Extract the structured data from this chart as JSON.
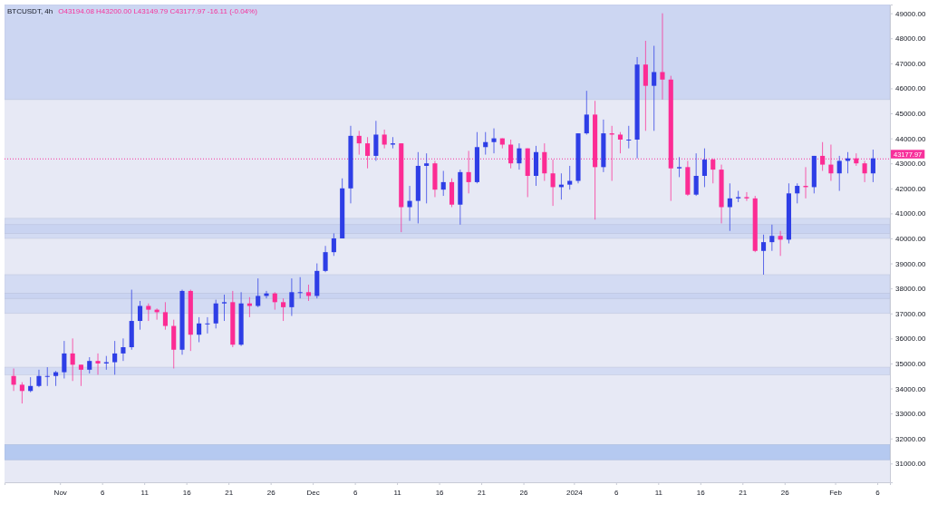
{
  "chart_data": {
    "type": "candlestick",
    "title": "BTCUSDT, 4h",
    "subtitle": "O43194.08 H43200.00 L43149.79 C43177.97 -16.11 (-0.04%)",
    "x": [
      "2023-10-26T12:00",
      "2023-10-27T12:00",
      "2023-10-28T12:00",
      "2023-10-29T12:00",
      "2023-10-30T12:00",
      "2023-10-31T12:00",
      "2023-11-01T12:00",
      "2023-11-02T12:00",
      "2023-11-03T12:00",
      "2023-11-04T12:00",
      "2023-11-05T12:00",
      "2023-11-06T12:00",
      "2023-11-07T12:00",
      "2023-11-08T12:00",
      "2023-11-09T12:00",
      "2023-11-10T12:00",
      "2023-11-11T12:00",
      "2023-11-12T12:00",
      "2023-11-13T12:00",
      "2023-11-14T12:00",
      "2023-11-15T12:00",
      "2023-11-16T12:00",
      "2023-11-17T12:00",
      "2023-11-18T12:00",
      "2023-11-19T12:00",
      "2023-11-20T12:00",
      "2023-11-21T12:00",
      "2023-11-22T12:00",
      "2023-11-23T12:00",
      "2023-11-24T12:00",
      "2023-11-25T12:00",
      "2023-11-26T12:00",
      "2023-11-27T12:00",
      "2023-11-28T12:00",
      "2023-11-29T12:00",
      "2023-11-30T12:00",
      "2023-12-01T12:00",
      "2023-12-02T12:00",
      "2023-12-03T12:00",
      "2023-12-04T12:00",
      "2023-12-05T12:00",
      "2023-12-06T12:00",
      "2023-12-07T12:00",
      "2023-12-08T12:00",
      "2023-12-09T12:00",
      "2023-12-10T12:00",
      "2023-12-11T12:00",
      "2023-12-12T12:00",
      "2023-12-13T12:00",
      "2023-12-14T12:00",
      "2023-12-15T12:00",
      "2023-12-16T12:00",
      "2023-12-17T12:00",
      "2023-12-18T12:00",
      "2023-12-19T12:00",
      "2023-12-20T12:00",
      "2023-12-21T12:00",
      "2023-12-22T12:00",
      "2023-12-23T12:00",
      "2023-12-24T12:00",
      "2023-12-25T12:00",
      "2023-12-26T12:00",
      "2023-12-27T12:00",
      "2023-12-28T12:00",
      "2023-12-29T12:00",
      "2023-12-30T12:00",
      "2023-12-31T12:00",
      "2024-01-01T12:00",
      "2024-01-02T12:00",
      "2024-01-03T12:00",
      "2024-01-04T12:00",
      "2024-01-05T12:00",
      "2024-01-06T12:00",
      "2024-01-07T12:00",
      "2024-01-08T12:00",
      "2024-01-09T12:00",
      "2024-01-10T12:00",
      "2024-01-11T12:00",
      "2024-01-12T12:00",
      "2024-01-13T12:00",
      "2024-01-14T12:00",
      "2024-01-15T12:00",
      "2024-01-16T12:00",
      "2024-01-17T12:00",
      "2024-01-18T12:00",
      "2024-01-19T12:00",
      "2024-01-20T12:00",
      "2024-01-21T12:00",
      "2024-01-22T12:00",
      "2024-01-23T12:00",
      "2024-01-24T12:00",
      "2024-01-25T12:00",
      "2024-01-26T12:00",
      "2024-01-27T12:00",
      "2024-01-28T12:00",
      "2024-01-29T12:00",
      "2024-01-30T12:00",
      "2024-01-31T12:00",
      "2024-02-01T12:00",
      "2024-02-02T12:00",
      "2024-02-03T12:00",
      "2024-02-04T12:00",
      "2024-02-05T12:00"
    ],
    "ohlc": [
      [
        34500,
        34800,
        33900,
        34150
      ],
      [
        34150,
        34250,
        33400,
        33900
      ],
      [
        33900,
        34450,
        33850,
        34100
      ],
      [
        34100,
        34750,
        34050,
        34500
      ],
      [
        34500,
        34850,
        34100,
        34500
      ],
      [
        34500,
        34700,
        34100,
        34650
      ],
      [
        34650,
        35900,
        34400,
        35400
      ],
      [
        35400,
        36000,
        34300,
        34950
      ],
      [
        34950,
        34950,
        34100,
        34750
      ],
      [
        34750,
        35250,
        34600,
        35100
      ],
      [
        35100,
        35400,
        34550,
        35000
      ],
      [
        35000,
        35300,
        34750,
        35050
      ],
      [
        35050,
        35900,
        34550,
        35400
      ],
      [
        35400,
        36000,
        35100,
        35650
      ],
      [
        35650,
        37950,
        35550,
        36700
      ],
      [
        36700,
        37500,
        36350,
        37300
      ],
      [
        37300,
        37400,
        36700,
        37150
      ],
      [
        37150,
        37200,
        36750,
        37050
      ],
      [
        37050,
        37450,
        36350,
        36500
      ],
      [
        36500,
        36750,
        34800,
        35550
      ],
      [
        35550,
        37950,
        35350,
        37900
      ],
      [
        37900,
        37950,
        35500,
        36150
      ],
      [
        36150,
        36850,
        35850,
        36600
      ],
      [
        36600,
        36850,
        36200,
        36600
      ],
      [
        36600,
        37550,
        36400,
        37400
      ],
      [
        37400,
        37750,
        36700,
        37450
      ],
      [
        37450,
        37900,
        35650,
        35750
      ],
      [
        35750,
        37850,
        35700,
        37400
      ],
      [
        37400,
        37650,
        36850,
        37300
      ],
      [
        37300,
        38400,
        37250,
        37700
      ],
      [
        37700,
        37900,
        37600,
        37800
      ],
      [
        37800,
        37850,
        37150,
        37450
      ],
      [
        37450,
        37600,
        36700,
        37250
      ],
      [
        37250,
        38400,
        36900,
        37850
      ],
      [
        37850,
        38450,
        37600,
        37850
      ],
      [
        37850,
        38150,
        37500,
        37700
      ],
      [
        37700,
        39000,
        37600,
        38700
      ],
      [
        38700,
        39700,
        38650,
        39450
      ],
      [
        39450,
        40200,
        39300,
        40000
      ],
      [
        40000,
        42400,
        40000,
        42000
      ],
      [
        42000,
        44500,
        41400,
        44100
      ],
      [
        44100,
        44300,
        43350,
        43800
      ],
      [
        43800,
        44050,
        42800,
        43300
      ],
      [
        43300,
        44700,
        43100,
        44150
      ],
      [
        44150,
        44350,
        43600,
        43750
      ],
      [
        43750,
        44050,
        43600,
        43800
      ],
      [
        43800,
        43800,
        40250,
        41250
      ],
      [
        41250,
        42100,
        40700,
        41500
      ],
      [
        41500,
        43450,
        40600,
        42900
      ],
      [
        42900,
        43400,
        41400,
        43000
      ],
      [
        43000,
        43100,
        41650,
        41950
      ],
      [
        41950,
        42700,
        41700,
        42250
      ],
      [
        42250,
        42400,
        41250,
        41350
      ],
      [
        41350,
        42750,
        40550,
        42650
      ],
      [
        42650,
        43500,
        41800,
        42250
      ],
      [
        42250,
        44250,
        42200,
        43650
      ],
      [
        43650,
        44250,
        43350,
        43850
      ],
      [
        43850,
        44400,
        43400,
        44000
      ],
      [
        44000,
        44000,
        43600,
        43750
      ],
      [
        43750,
        43950,
        42800,
        43000
      ],
      [
        43000,
        43800,
        42750,
        43600
      ],
      [
        43600,
        43600,
        41650,
        42500
      ],
      [
        42500,
        43700,
        42100,
        43450
      ],
      [
        43450,
        43800,
        42300,
        42600
      ],
      [
        42600,
        43150,
        41300,
        42050
      ],
      [
        42050,
        42600,
        41550,
        42150
      ],
      [
        42150,
        42900,
        41950,
        42300
      ],
      [
        42300,
        44200,
        42200,
        44200
      ],
      [
        44200,
        45900,
        44150,
        44950
      ],
      [
        44950,
        45500,
        40750,
        42850
      ],
      [
        42850,
        44750,
        42650,
        44200
      ],
      [
        44200,
        44500,
        42300,
        44150
      ],
      [
        44150,
        44250,
        43400,
        43950
      ],
      [
        43950,
        44500,
        43600,
        43950
      ],
      [
        43950,
        47250,
        43200,
        46950
      ],
      [
        46950,
        47900,
        44300,
        46100
      ],
      [
        46100,
        47700,
        44300,
        46650
      ],
      [
        46650,
        49000,
        45550,
        46350
      ],
      [
        46350,
        46500,
        41500,
        42800
      ],
      [
        42800,
        43250,
        42450,
        42850
      ],
      [
        42850,
        43100,
        41700,
        41750
      ],
      [
        41750,
        43400,
        41700,
        42500
      ],
      [
        42500,
        43600,
        42050,
        43150
      ],
      [
        43150,
        43200,
        42200,
        42750
      ],
      [
        42750,
        42950,
        40600,
        41250
      ],
      [
        41250,
        42200,
        40300,
        41600
      ],
      [
        41600,
        41900,
        41450,
        41650
      ],
      [
        41650,
        41850,
        41500,
        41600
      ],
      [
        41600,
        41700,
        39450,
        39500
      ],
      [
        39500,
        40150,
        38550,
        39850
      ],
      [
        39850,
        40550,
        39500,
        40100
      ],
      [
        40100,
        40300,
        39300,
        39950
      ],
      [
        39950,
        42200,
        39800,
        41800
      ],
      [
        41800,
        42200,
        41400,
        42100
      ],
      [
        42100,
        42850,
        41600,
        42050
      ],
      [
        42050,
        43300,
        41800,
        43300
      ],
      [
        43300,
        43850,
        42700,
        42950
      ],
      [
        42950,
        43750,
        42300,
        42600
      ],
      [
        42600,
        43300,
        41900,
        43100
      ],
      [
        43100,
        43450,
        42600,
        43200
      ],
      [
        43200,
        43400,
        42900,
        43000
      ],
      [
        43000,
        43100,
        42250,
        42600
      ],
      [
        42600,
        43550,
        42250,
        43200
      ]
    ],
    "colors": [
      "#fc2c94",
      "#fc2c94",
      "#2e3ee6",
      "#2e3ee6",
      "#2e3ee6",
      "#2e3ee6",
      "#2e3ee6",
      "#fc2c94",
      "#fc2c94",
      "#2e3ee6",
      "#fc2c94",
      "#2e3ee6",
      "#2e3ee6",
      "#2e3ee6",
      "#2e3ee6",
      "#2e3ee6",
      "#fc2c94",
      "#fc2c94",
      "#fc2c94",
      "#fc2c94",
      "#2e3ee6",
      "#fc2c94",
      "#2e3ee6",
      "#2e3ee6",
      "#2e3ee6",
      "#2e3ee6",
      "#fc2c94",
      "#2e3ee6",
      "#fc2c94",
      "#2e3ee6",
      "#2e3ee6",
      "#fc2c94",
      "#fc2c94",
      "#2e3ee6",
      "#2e3ee6",
      "#fc2c94",
      "#2e3ee6",
      "#2e3ee6",
      "#2e3ee6",
      "#2e3ee6",
      "#2e3ee6",
      "#fc2c94",
      "#fc2c94",
      "#2e3ee6",
      "#fc2c94",
      "#2e3ee6",
      "#fc2c94",
      "#2e3ee6",
      "#2e3ee6",
      "#2e3ee6",
      "#fc2c94",
      "#2e3ee6",
      "#fc2c94",
      "#2e3ee6",
      "#fc2c94",
      "#2e3ee6",
      "#2e3ee6",
      "#2e3ee6",
      "#fc2c94",
      "#fc2c94",
      "#2e3ee6",
      "#fc2c94",
      "#2e3ee6",
      "#fc2c94",
      "#fc2c94",
      "#2e3ee6",
      "#2e3ee6",
      "#2e3ee6",
      "#2e3ee6",
      "#fc2c94",
      "#2e3ee6",
      "#fc2c94",
      "#fc2c94",
      "#2e3ee6",
      "#2e3ee6",
      "#fc2c94",
      "#2e3ee6",
      "#fc2c94",
      "#fc2c94",
      "#2e3ee6",
      "#fc2c94",
      "#2e3ee6",
      "#2e3ee6",
      "#fc2c94",
      "#fc2c94",
      "#2e3ee6",
      "#2e3ee6",
      "#fc2c94",
      "#fc2c94",
      "#2e3ee6",
      "#2e3ee6",
      "#fc2c94",
      "#2e3ee6",
      "#2e3ee6",
      "#fc2c94",
      "#2e3ee6",
      "#fc2c94",
      "#fc2c94",
      "#2e3ee6",
      "#2e3ee6",
      "#fc2c94",
      "#fc2c94",
      "#2e3ee6"
    ],
    "xlim": [
      "2023-10-25T10:00",
      "2024-02-07T12:00"
    ],
    "xticks": [
      {
        "value": "2023-11-01",
        "label": "Nov"
      },
      {
        "value": "2023-11-06",
        "label": "6"
      },
      {
        "value": "2023-11-11",
        "label": "11"
      },
      {
        "value": "2023-11-16",
        "label": "16"
      },
      {
        "value": "2023-11-21",
        "label": "21"
      },
      {
        "value": "2023-11-26",
        "label": "26"
      },
      {
        "value": "2023-12-01",
        "label": "Dec"
      },
      {
        "value": "2023-12-06",
        "label": "6"
      },
      {
        "value": "2023-12-11",
        "label": "11"
      },
      {
        "value": "2023-12-16",
        "label": "16"
      },
      {
        "value": "2023-12-21",
        "label": "21"
      },
      {
        "value": "2023-12-26",
        "label": "26"
      },
      {
        "value": "2024-01-01",
        "label": "2024"
      },
      {
        "value": "2024-01-06",
        "label": "6"
      },
      {
        "value": "2024-01-11",
        "label": "11"
      },
      {
        "value": "2024-01-16",
        "label": "16"
      },
      {
        "value": "2024-01-21",
        "label": "21"
      },
      {
        "value": "2024-01-26",
        "label": "26"
      },
      {
        "value": "2024-02-01",
        "label": "Feb"
      },
      {
        "value": "2024-02-06",
        "label": "6"
      }
    ],
    "ylim": [
      30250,
      49350
    ],
    "yticks": [
      {
        "value": 31000,
        "label": "31000.00"
      },
      {
        "value": 32000,
        "label": "32000.00"
      },
      {
        "value": 33000,
        "label": "33000.00"
      },
      {
        "value": 34000,
        "label": "34000.00"
      },
      {
        "value": 35000,
        "label": "35000.00"
      },
      {
        "value": 36000,
        "label": "36000.00"
      },
      {
        "value": 37000,
        "label": "37000.00"
      },
      {
        "value": 38000,
        "label": "38000.00"
      },
      {
        "value": 39000,
        "label": "39000.00"
      },
      {
        "value": 40000,
        "label": "40000.00"
      },
      {
        "value": 41000,
        "label": "41000.00"
      },
      {
        "value": 42000,
        "label": "42000.00"
      },
      {
        "value": 43000,
        "label": "43000.00"
      },
      {
        "value": 44000,
        "label": "44000.00"
      },
      {
        "value": 45000,
        "label": "45000.00"
      },
      {
        "value": 46000,
        "label": "46000.00"
      },
      {
        "value": 47000,
        "label": "47000.00"
      },
      {
        "value": 48000,
        "label": "48000.00"
      },
      {
        "value": 49000,
        "label": "49000.00"
      }
    ],
    "bands": [
      {
        "axis": "y",
        "from": 45550,
        "to": 49350,
        "color": "#ccd6f2"
      },
      {
        "axis": "y",
        "from": 40000,
        "to": 40800,
        "color": "#d3dbf3"
      },
      {
        "axis": "y",
        "from": 40200,
        "to": 40550,
        "color": "#c9d3f1"
      },
      {
        "axis": "y",
        "from": 37000,
        "to": 38550,
        "color": "#d3dbf3"
      },
      {
        "axis": "y",
        "from": 37600,
        "to": 37800,
        "color": "#c9d3f1"
      },
      {
        "axis": "y",
        "from": 34550,
        "to": 34850,
        "color": "#d3dbf3"
      },
      {
        "axis": "y",
        "from": 31150,
        "to": 31750,
        "color": "#b5c9f0"
      }
    ],
    "ref_lines": [
      {
        "axis": "y",
        "value": 43177.97,
        "label": "43177.97",
        "color": "#f7319b",
        "line_style": "dotted"
      }
    ]
  }
}
